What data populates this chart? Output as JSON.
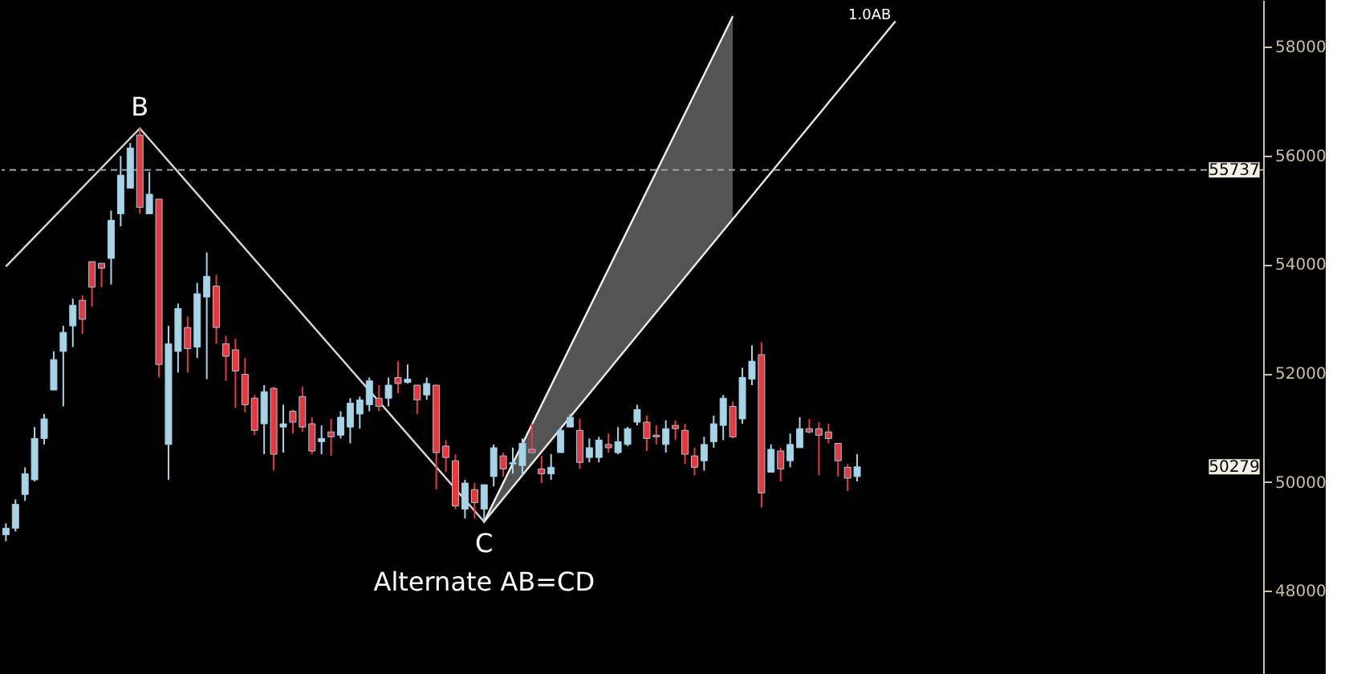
{
  "chart_data": {
    "type": "candlestick",
    "categories": [
      null,
      null,
      null,
      null,
      null,
      null,
      null,
      null,
      null,
      null,
      null,
      null,
      null,
      null,
      null,
      null,
      null,
      null,
      null,
      null,
      null,
      null,
      null,
      null,
      null,
      null,
      null,
      null,
      null,
      null,
      null,
      null,
      null,
      null,
      null,
      null,
      null,
      null,
      null,
      null,
      null,
      null,
      null,
      null,
      null,
      null,
      null,
      null,
      null,
      null,
      null,
      null,
      null,
      null,
      null,
      null,
      null,
      null,
      null,
      null,
      null,
      null,
      null,
      null,
      null,
      null,
      null,
      null,
      null,
      null,
      null,
      null,
      null,
      null,
      null,
      null,
      null,
      null,
      null,
      null,
      null,
      null,
      null,
      null,
      null,
      null,
      null,
      null,
      null,
      null,
      null,
      null,
      null,
      null,
      null,
      null,
      null,
      null,
      null,
      null,
      null,
      null,
      null,
      null,
      null,
      null,
      null,
      null,
      null,
      null,
      null,
      null,
      null,
      null,
      null,
      null,
      null,
      null,
      null,
      null,
      null,
      null,
      null,
      null,
      null,
      null,
      null,
      null,
      null,
      null,
      null,
      null
    ],
    "ohlc": [
      [
        49030,
        49240,
        48910,
        49150
      ],
      [
        49150,
        49680,
        49090,
        49590
      ],
      [
        49770,
        50270,
        49650,
        50150
      ],
      [
        50040,
        51010,
        50010,
        50800
      ],
      [
        50800,
        51250,
        50690,
        51160
      ],
      [
        51690,
        52400,
        51690,
        52250
      ],
      [
        52400,
        52870,
        51390,
        52750
      ],
      [
        52870,
        53370,
        52480,
        53250
      ],
      [
        53340,
        53430,
        52720,
        52990
      ],
      [
        54050,
        54050,
        53220,
        53580
      ],
      [
        54020,
        54020,
        53580,
        53930
      ],
      [
        54110,
        54990,
        53630,
        54810
      ],
      [
        54930,
        55990,
        54700,
        55640
      ],
      [
        55400,
        56230,
        55400,
        56140
      ],
      [
        56380,
        56500,
        54930,
        55050
      ],
      [
        54930,
        55700,
        54930,
        55290
      ],
      [
        55200,
        55200,
        51920,
        52160
      ],
      [
        50690,
        52870,
        50040,
        52540
      ],
      [
        52400,
        53280,
        52010,
        53190
      ],
      [
        52840,
        53040,
        52010,
        52450
      ],
      [
        52480,
        53660,
        52280,
        53460
      ],
      [
        53400,
        54220,
        51890,
        53780
      ],
      [
        53600,
        53810,
        52540,
        52840
      ],
      [
        52540,
        52690,
        51860,
        52310
      ],
      [
        52430,
        52630,
        51360,
        52040
      ],
      [
        51980,
        52280,
        51280,
        51420
      ],
      [
        51540,
        51600,
        50860,
        50950
      ],
      [
        51070,
        51780,
        50510,
        51660
      ],
      [
        51720,
        51750,
        50210,
        50510
      ],
      [
        51010,
        51420,
        50540,
        51070
      ],
      [
        51300,
        51330,
        50890,
        51100
      ],
      [
        51570,
        51750,
        50920,
        51010
      ],
      [
        51070,
        51190,
        50510,
        50570
      ],
      [
        50740,
        51040,
        50510,
        50800
      ],
      [
        50920,
        51160,
        50480,
        50830
      ],
      [
        50860,
        51300,
        50800,
        51190
      ],
      [
        51010,
        51540,
        50710,
        51450
      ],
      [
        51250,
        51570,
        50980,
        51510
      ],
      [
        51420,
        51920,
        51300,
        51860
      ],
      [
        51540,
        51780,
        51300,
        51390
      ],
      [
        51540,
        51920,
        51390,
        51780
      ],
      [
        51920,
        52220,
        51630,
        51810
      ],
      [
        51830,
        52160,
        51810,
        51890
      ],
      [
        51780,
        51780,
        51250,
        51510
      ],
      [
        51600,
        51920,
        51510,
        51810
      ],
      [
        51780,
        51780,
        49860,
        50540
      ],
      [
        50660,
        50770,
        50180,
        50450
      ],
      [
        50390,
        50510,
        49500,
        49560
      ],
      [
        49500,
        50040,
        49330,
        49980
      ],
      [
        49860,
        49980,
        49330,
        49620
      ],
      [
        49500,
        49950,
        49240,
        49950
      ],
      [
        50100,
        50690,
        49920,
        50630
      ],
      [
        50480,
        50540,
        50100,
        50240
      ],
      [
        50330,
        50630,
        50150,
        50360
      ],
      [
        50300,
        50800,
        50120,
        50710
      ],
      [
        50600,
        51070,
        50540,
        50540
      ],
      [
        50240,
        50480,
        49980,
        50150
      ],
      [
        50150,
        50510,
        50040,
        50270
      ],
      [
        50540,
        51010,
        50540,
        50950
      ],
      [
        51010,
        51250,
        51010,
        51190
      ],
      [
        50950,
        51160,
        50240,
        50360
      ],
      [
        50450,
        50800,
        50360,
        50630
      ],
      [
        50450,
        50830,
        50360,
        50770
      ],
      [
        50690,
        50890,
        50540,
        50630
      ],
      [
        50540,
        51010,
        50510,
        50740
      ],
      [
        50690,
        51010,
        50660,
        50980
      ],
      [
        51100,
        51420,
        51040,
        51330
      ],
      [
        51100,
        51220,
        50570,
        50800
      ],
      [
        50860,
        51040,
        50690,
        50830
      ],
      [
        50690,
        51130,
        50540,
        50980
      ],
      [
        51040,
        51130,
        50770,
        50980
      ],
      [
        50950,
        51070,
        50330,
        50510
      ],
      [
        50480,
        50630,
        50120,
        50270
      ],
      [
        50390,
        50830,
        50210,
        50690
      ],
      [
        50740,
        51220,
        50630,
        51070
      ],
      [
        51040,
        51600,
        50770,
        51540
      ],
      [
        51390,
        51480,
        50800,
        50830
      ],
      [
        51160,
        52100,
        51070,
        51920
      ],
      [
        51890,
        52510,
        51780,
        52220
      ],
      [
        52340,
        52570,
        49530,
        49800
      ],
      [
        50180,
        50690,
        50180,
        50600
      ],
      [
        50570,
        50630,
        50010,
        50240
      ],
      [
        50390,
        50890,
        50270,
        50690
      ],
      [
        50630,
        51190,
        50630,
        50980
      ],
      [
        50980,
        51160,
        50890,
        50920
      ],
      [
        50980,
        51100,
        50120,
        50860
      ],
      [
        50920,
        51070,
        50710,
        50800
      ],
      [
        50710,
        50710,
        50100,
        50390
      ],
      [
        50270,
        50330,
        49830,
        50070
      ],
      [
        50100,
        50510,
        50010,
        50279
      ],
      null,
      null,
      null,
      null,
      null,
      null,
      null,
      null,
      null,
      null,
      null,
      null,
      null,
      null,
      null,
      null,
      null,
      null,
      null,
      null,
      null,
      null,
      null,
      null,
      null,
      null,
      null,
      null,
      null,
      null,
      null,
      null,
      null,
      null,
      null,
      null,
      null,
      null,
      null,
      null,
      null,
      null
    ],
    "colors": [
      "#a8d4e8",
      "#a8d4e8",
      "#a8d4e8",
      "#a8d4e8",
      "#a8d4e8",
      "#a8d4e8",
      "#a8d4e8",
      "#a8d4e8",
      "#e8383d",
      "#e8383d",
      "#e8383d",
      "#a8d4e8",
      "#a8d4e8",
      "#a8d4e8",
      "#e8383d",
      "#a8d4e8",
      "#e8383d",
      "#a8d4e8",
      "#a8d4e8",
      "#e8383d",
      "#a8d4e8",
      "#a8d4e8",
      "#e8383d",
      "#e8383d",
      "#e8383d",
      "#e8383d",
      "#e8383d",
      "#a8d4e8",
      "#e8383d",
      "#a8d4e8",
      "#e8383d",
      "#e8383d",
      "#e8383d",
      "#a8d4e8",
      "#e8383d",
      "#a8d4e8",
      "#a8d4e8",
      "#a8d4e8",
      "#a8d4e8",
      "#e8383d",
      "#a8d4e8",
      "#e8383d",
      "#a8d4e8",
      "#e8383d",
      "#a8d4e8",
      "#e8383d",
      "#e8383d",
      "#e8383d",
      "#a8d4e8",
      "#e8383d",
      "#a8d4e8",
      "#a8d4e8",
      "#e8383d",
      "#a8d4e8",
      "#a8d4e8",
      "#e8383d",
      "#e8383d",
      "#a8d4e8",
      "#a8d4e8",
      "#a8d4e8",
      "#e8383d",
      "#a8d4e8",
      "#a8d4e8",
      "#e8383d",
      "#a8d4e8",
      "#a8d4e8",
      "#a8d4e8",
      "#e8383d",
      "#e8383d",
      "#a8d4e8",
      "#e8383d",
      "#e8383d",
      "#e8383d",
      "#a8d4e8",
      "#a8d4e8",
      "#a8d4e8",
      "#e8383d",
      "#a8d4e8",
      "#a8d4e8",
      "#e8383d",
      "#a8d4e8",
      "#e8383d",
      "#a8d4e8",
      "#a8d4e8",
      "#e8383d",
      "#e8383d",
      "#e8383d",
      "#e8383d",
      "#e8383d",
      "#a8d4e8",
      null,
      null,
      null,
      null,
      null,
      null,
      null,
      null,
      null,
      null,
      null,
      null,
      null,
      null,
      null,
      null,
      null,
      null,
      null,
      null,
      null,
      null,
      null,
      null,
      null,
      null,
      null,
      null,
      null,
      null,
      null,
      null,
      null,
      null,
      null,
      null,
      null,
      null,
      null,
      null,
      null,
      null
    ],
    "series": [
      {
        "type": "line",
        "color": "#d8d8d8",
        "values": [
          53960,
          null,
          null,
          null,
          null,
          null,
          null,
          null,
          null,
          null,
          null,
          null,
          null,
          null,
          56500,
          null,
          null,
          null,
          null,
          null,
          null,
          null,
          null,
          null,
          null,
          null,
          null,
          null,
          null,
          null,
          null,
          null,
          null,
          null,
          null,
          null,
          null,
          null,
          null,
          null,
          null,
          null,
          null,
          null,
          null,
          null,
          null,
          null,
          null,
          null,
          49270,
          null,
          null,
          null,
          null,
          null,
          null,
          null,
          null,
          null,
          null,
          null,
          null,
          null,
          null,
          null,
          null,
          null,
          null,
          null,
          null,
          null,
          null,
          null,
          null,
          null,
          null,
          null,
          null,
          null,
          null,
          null,
          null,
          null,
          null,
          null,
          null,
          null,
          null,
          null,
          null,
          null,
          null,
          null,
          null,
          null,
          null,
          null,
          null,
          null,
          null,
          null,
          null,
          null,
          null,
          null,
          null,
          null,
          null,
          null,
          null,
          null,
          null,
          null,
          null,
          null,
          null,
          null,
          null,
          null,
          null,
          null,
          null,
          null,
          null,
          null,
          null,
          null,
          null,
          null,
          null,
          null
        ]
      },
      {
        "type": "line",
        "color": "#e8e8e8",
        "values": [
          null,
          null,
          null,
          null,
          null,
          null,
          null,
          null,
          null,
          null,
          null,
          null,
          null,
          null,
          null,
          null,
          null,
          null,
          null,
          null,
          null,
          null,
          null,
          null,
          null,
          null,
          null,
          null,
          null,
          null,
          null,
          null,
          null,
          null,
          null,
          null,
          null,
          null,
          null,
          null,
          null,
          null,
          null,
          null,
          null,
          null,
          null,
          null,
          null,
          null,
          49270,
          null,
          null,
          null,
          null,
          null,
          null,
          null,
          null,
          null,
          null,
          null,
          null,
          null,
          null,
          null,
          null,
          null,
          null,
          null,
          null,
          null,
          null,
          null,
          null,
          null,
          null,
          null,
          null,
          null,
          null,
          null,
          null,
          null,
          null,
          null,
          null,
          null,
          null,
          null,
          null,
          null,
          null,
          58470,
          null,
          null,
          null,
          null,
          null,
          null,
          null,
          null,
          null,
          null,
          null,
          null,
          null,
          null,
          null,
          null,
          null,
          null,
          null,
          null,
          null,
          null,
          null,
          null,
          null,
          null,
          null,
          null,
          null,
          null,
          null,
          null,
          null,
          null,
          null,
          null,
          null,
          null
        ]
      },
      {
        "type": "line",
        "color": "#f0f0f0",
        "values": [
          null,
          null,
          null,
          null,
          null,
          null,
          null,
          null,
          null,
          null,
          null,
          null,
          null,
          null,
          null,
          null,
          null,
          null,
          null,
          null,
          null,
          null,
          null,
          null,
          null,
          null,
          null,
          null,
          null,
          null,
          null,
          null,
          null,
          null,
          null,
          null,
          null,
          null,
          null,
          null,
          null,
          null,
          null,
          null,
          null,
          null,
          null,
          null,
          null,
          null,
          49270,
          null,
          null,
          null,
          null,
          null,
          null,
          null,
          null,
          null,
          null,
          null,
          null,
          null,
          null,
          null,
          null,
          null,
          null,
          null,
          null,
          null,
          null,
          null,
          null,
          null,
          58560,
          null,
          null,
          null,
          null,
          null,
          null,
          null,
          null,
          null,
          null,
          null,
          null,
          null,
          null,
          null,
          null,
          null,
          null,
          null,
          null,
          null,
          null,
          null,
          null,
          null,
          null,
          null,
          null,
          null,
          null,
          null,
          null,
          null,
          null,
          null,
          null,
          null,
          null,
          null,
          null,
          null,
          null,
          null,
          null,
          null,
          null,
          null,
          null,
          null,
          null,
          null,
          null,
          null,
          null,
          null
        ],
        "lower": [
          null,
          null,
          null,
          null,
          null,
          null,
          null,
          null,
          null,
          null,
          null,
          null,
          null,
          null,
          null,
          null,
          null,
          null,
          null,
          null,
          null,
          null,
          null,
          null,
          null,
          null,
          null,
          null,
          null,
          null,
          null,
          null,
          null,
          null,
          null,
          null,
          null,
          null,
          null,
          null,
          null,
          null,
          null,
          null,
          null,
          null,
          null,
          null,
          null,
          null,
          49270,
          null,
          null,
          null,
          null,
          null,
          null,
          null,
          null,
          null,
          null,
          null,
          null,
          null,
          null,
          null,
          null,
          null,
          null,
          null,
          null,
          null,
          null,
          null,
          null,
          null,
          54810,
          null,
          null,
          null,
          null,
          null,
          null,
          null,
          null,
          null,
          null,
          null,
          null,
          null,
          null,
          null,
          null,
          null,
          null,
          null,
          null,
          null,
          null,
          null,
          null,
          null,
          null,
          null,
          null,
          null,
          null,
          null,
          null,
          null,
          null,
          null,
          null,
          null,
          null,
          null,
          null,
          null,
          null,
          null,
          null,
          null,
          null,
          null,
          null,
          null,
          null,
          null,
          null,
          null,
          null,
          null
        ],
        "upper": [
          null,
          null,
          null,
          null,
          null,
          null,
          null,
          null,
          null,
          null,
          null,
          null,
          null,
          null,
          null,
          null,
          null,
          null,
          null,
          null,
          null,
          null,
          null,
          null,
          null,
          null,
          null,
          null,
          null,
          null,
          null,
          null,
          null,
          null,
          null,
          null,
          null,
          null,
          null,
          null,
          null,
          null,
          null,
          null,
          null,
          null,
          null,
          null,
          null,
          null,
          49270,
          null,
          null,
          null,
          null,
          null,
          null,
          null,
          null,
          null,
          null,
          null,
          null,
          null,
          null,
          null,
          null,
          null,
          null,
          null,
          null,
          null,
          null,
          null,
          null,
          null,
          58560,
          null,
          null,
          null,
          null,
          null,
          null,
          null,
          null,
          null,
          null,
          null,
          null,
          null,
          null,
          null,
          null,
          null,
          null,
          null,
          null,
          null,
          null,
          null,
          null,
          null,
          null,
          null,
          null,
          null,
          null,
          null,
          null,
          null,
          null,
          null,
          null,
          null,
          null,
          null,
          null,
          null,
          null,
          null,
          null,
          null,
          null,
          null,
          null,
          null,
          null,
          null,
          null,
          null,
          null,
          null
        ]
      }
    ],
    "ylim": [
      46470,
      58860
    ],
    "yticks": [
      48000,
      50000,
      52000,
      54000,
      56000,
      58000
    ],
    "ref_lines": [
      {
        "axis": "y",
        "value": 55737,
        "label": "55737",
        "color": "#a0a0a0",
        "line_style": "dashed"
      }
    ],
    "annotations": [
      {
        "text": "B",
        "y": 56500
      },
      {
        "text": "C",
        "y": 49270
      },
      "Alternate AB=CD",
      "1.0AB",
      "50279"
    ],
    "tick_labels": "y",
    "grid": false
  }
}
